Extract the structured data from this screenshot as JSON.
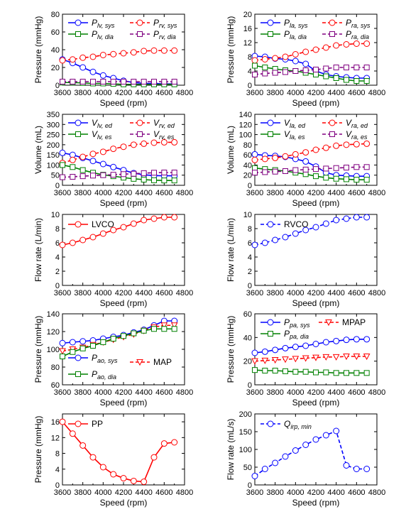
{
  "chart_data": [
    {
      "type": "line",
      "xlabel": "Speed (rpm)",
      "ylabel": "Pressure (mmHg)",
      "xlim": [
        3600,
        4800
      ],
      "ylim": [
        0,
        80
      ],
      "xticks": [
        3600,
        3800,
        4000,
        4200,
        4400,
        4600,
        4800
      ],
      "yticks": [
        0,
        20,
        40,
        60,
        80
      ],
      "legend": "top",
      "x": [
        3600,
        3700,
        3800,
        3900,
        4000,
        4100,
        4200,
        4300,
        4400,
        4500,
        4600,
        4700
      ],
      "series": [
        {
          "name": "P",
          "sub": "lv, sys",
          "color": "#0000ff",
          "marker": "circle",
          "dashed": false,
          "values": [
            29,
            25,
            20,
            15,
            11,
            8,
            5,
            3,
            2,
            2,
            1.5,
            1.5
          ]
        },
        {
          "name": "P",
          "sub": "rv, sys",
          "color": "#ff0000",
          "marker": "circle",
          "dashed": true,
          "values": [
            28,
            29,
            31,
            32,
            34,
            35,
            36,
            37,
            38.5,
            39,
            39,
            39
          ]
        },
        {
          "name": "P",
          "sub": "lv, dia",
          "color": "#008000",
          "marker": "square",
          "dashed": false,
          "values": [
            3,
            3,
            2.5,
            2,
            2,
            1.5,
            1,
            1,
            1,
            1,
            1,
            1
          ]
        },
        {
          "name": "P",
          "sub": "rv, dia",
          "color": "#800080",
          "marker": "square",
          "dashed": true,
          "values": [
            4,
            4,
            4,
            4,
            4,
            4,
            4,
            4,
            4,
            4,
            4,
            4
          ]
        }
      ]
    },
    {
      "type": "line",
      "xlabel": "Speed (rpm)",
      "ylabel": "Pressure (mmHg)",
      "xlim": [
        3600,
        4800
      ],
      "ylim": [
        0,
        20
      ],
      "xticks": [
        3600,
        3800,
        4000,
        4200,
        4400,
        4600,
        4800
      ],
      "yticks": [
        0,
        4,
        8,
        12,
        16,
        20
      ],
      "legend": "top",
      "x": [
        3600,
        3700,
        3800,
        3900,
        4000,
        4100,
        4200,
        4300,
        4400,
        4500,
        4600,
        4700
      ],
      "series": [
        {
          "name": "P",
          "sub": "la, sys",
          "color": "#0000ff",
          "marker": "circle",
          "dashed": false,
          "values": [
            8.2,
            8,
            7.5,
            7.3,
            6.8,
            6,
            4,
            3,
            2.5,
            2.2,
            2,
            2
          ]
        },
        {
          "name": "P",
          "sub": "ra, sys",
          "color": "#ff0000",
          "marker": "circle",
          "dashed": true,
          "values": [
            7,
            7.3,
            7.6,
            8,
            8.7,
            9.4,
            10,
            10.6,
            11.2,
            11.5,
            11.7,
            11.7
          ]
        },
        {
          "name": "P",
          "sub": "la, dia",
          "color": "#008000",
          "marker": "square",
          "dashed": false,
          "values": [
            5.5,
            5,
            4.6,
            4.2,
            4,
            3.5,
            3,
            2.5,
            2,
            1.5,
            1.2,
            1.2
          ]
        },
        {
          "name": "P",
          "sub": "ra, dia",
          "color": "#800080",
          "marker": "square",
          "dashed": true,
          "values": [
            3,
            3.3,
            3.5,
            3.7,
            4,
            4.2,
            4.4,
            4.7,
            5,
            5,
            5,
            5
          ]
        }
      ]
    },
    {
      "type": "line",
      "xlabel": "Speed (rpm)",
      "ylabel": "Volume (mL)",
      "xlim": [
        3600,
        4800
      ],
      "ylim": [
        0,
        350
      ],
      "xticks": [
        3600,
        3800,
        4000,
        4200,
        4400,
        4600,
        4800
      ],
      "yticks": [
        0,
        50,
        100,
        150,
        200,
        250,
        300,
        350
      ],
      "legend": "top",
      "x": [
        3600,
        3700,
        3800,
        3900,
        4000,
        4100,
        4200,
        4300,
        4400,
        4500,
        4600,
        4700
      ],
      "series": [
        {
          "name": "V",
          "sub": "lv, ed",
          "color": "#0000ff",
          "marker": "circle",
          "dashed": false,
          "values": [
            160,
            150,
            135,
            120,
            105,
            90,
            75,
            60,
            52,
            48,
            47,
            47
          ]
        },
        {
          "name": "V",
          "sub": "rv, ed",
          "color": "#ff0000",
          "marker": "circle",
          "dashed": true,
          "values": [
            110,
            125,
            140,
            155,
            165,
            180,
            190,
            200,
            205,
            210,
            212,
            212
          ]
        },
        {
          "name": "V",
          "sub": "lv, es",
          "color": "#008000",
          "marker": "square",
          "dashed": false,
          "values": [
            100,
            90,
            75,
            62,
            52,
            45,
            38,
            32,
            28,
            25,
            24,
            24
          ]
        },
        {
          "name": "V",
          "sub": "rv, es",
          "color": "#800080",
          "marker": "square",
          "dashed": true,
          "values": [
            40,
            42,
            45,
            48,
            50,
            52,
            55,
            57,
            60,
            62,
            63,
            63
          ]
        }
      ]
    },
    {
      "type": "line",
      "xlabel": "Speed (rpm)",
      "ylabel": "Volume (mL)",
      "xlim": [
        3600,
        4800
      ],
      "ylim": [
        0,
        140
      ],
      "xticks": [
        3600,
        3800,
        4000,
        4200,
        4400,
        4600,
        4800
      ],
      "yticks": [
        0,
        20,
        40,
        60,
        80,
        100,
        120,
        140
      ],
      "legend": "top",
      "x": [
        3600,
        3700,
        3800,
        3900,
        4000,
        4100,
        4200,
        4300,
        4400,
        4500,
        4600,
        4700
      ],
      "series": [
        {
          "name": "V",
          "sub": "la, ed",
          "color": "#0000ff",
          "marker": "circle",
          "dashed": false,
          "values": [
            61,
            59,
            58,
            56,
            52,
            47,
            37,
            25,
            20,
            19,
            18,
            18
          ]
        },
        {
          "name": "V",
          "sub": "ra, ed",
          "color": "#ff0000",
          "marker": "circle",
          "dashed": true,
          "values": [
            50,
            52,
            54,
            57,
            61,
            65,
            70,
            74,
            78,
            80,
            81,
            82
          ]
        },
        {
          "name": "V",
          "sub": "la, es",
          "color": "#008000",
          "marker": "square",
          "dashed": false,
          "values": [
            34,
            32,
            30,
            28,
            25,
            22,
            18,
            15,
            13,
            12,
            11,
            11
          ]
        },
        {
          "name": "V",
          "sub": "ra, es",
          "color": "#800080",
          "marker": "square",
          "dashed": true,
          "values": [
            25,
            26,
            27,
            28,
            30,
            31,
            32,
            33,
            34,
            35,
            36,
            36
          ]
        }
      ]
    },
    {
      "type": "line",
      "xlabel": "Speed (rpm)",
      "ylabel": "Flow rate (L/min)",
      "xlim": [
        3600,
        4800
      ],
      "ylim": [
        0,
        10
      ],
      "xticks": [
        3600,
        3800,
        4000,
        4200,
        4400,
        4600,
        4800
      ],
      "yticks": [
        0,
        2,
        4,
        6,
        8,
        10
      ],
      "legend": "top-left",
      "x": [
        3600,
        3700,
        3800,
        3900,
        4000,
        4100,
        4200,
        4300,
        4400,
        4500,
        4600,
        4700
      ],
      "series": [
        {
          "name": "LVCO",
          "sub": "",
          "color": "#ff0000",
          "marker": "circle",
          "dashed": false,
          "values": [
            5.7,
            6.0,
            6.4,
            6.8,
            7.3,
            7.8,
            8.2,
            8.7,
            9.2,
            9.4,
            9.6,
            9.6
          ]
        }
      ]
    },
    {
      "type": "line",
      "xlabel": "Speed (rpm)",
      "ylabel": "Flow rate (L/min)",
      "xlim": [
        3600,
        4800
      ],
      "ylim": [
        0,
        10
      ],
      "xticks": [
        3600,
        3800,
        4000,
        4200,
        4400,
        4600,
        4800
      ],
      "yticks": [
        0,
        2,
        4,
        6,
        8,
        10
      ],
      "legend": "top-left",
      "x": [
        3600,
        3700,
        3800,
        3900,
        4000,
        4100,
        4200,
        4300,
        4400,
        4500,
        4600,
        4700
      ],
      "series": [
        {
          "name": "RVCO",
          "sub": "",
          "color": "#0000ff",
          "marker": "circle",
          "dashed": true,
          "values": [
            5.7,
            6.0,
            6.4,
            6.8,
            7.3,
            7.8,
            8.2,
            8.7,
            9.2,
            9.4,
            9.6,
            9.6
          ]
        }
      ]
    },
    {
      "type": "line",
      "xlabel": "Speed (rpm)",
      "ylabel": "Pressure (mmHg)",
      "xlim": [
        3600,
        4800
      ],
      "ylim": [
        60,
        140
      ],
      "xticks": [
        3600,
        3800,
        4000,
        4200,
        4400,
        4600,
        4800
      ],
      "yticks": [
        60,
        80,
        100,
        120,
        140
      ],
      "legend": "bottom",
      "x": [
        3600,
        3700,
        3800,
        3900,
        4000,
        4100,
        4200,
        4300,
        4400,
        4500,
        4600,
        4700
      ],
      "series": [
        {
          "name": "P",
          "sub": "ao, sys",
          "color": "#0000ff",
          "marker": "circle",
          "dashed": false,
          "values": [
            107,
            108,
            109,
            110,
            112,
            114,
            116,
            119,
            122,
            127,
            132,
            132
          ]
        },
        {
          "name": "MAP",
          "sub": "",
          "color": "#ff0000",
          "marker": "triangle",
          "dashed": true,
          "values": [
            98,
            100,
            102,
            105,
            108,
            111,
            114,
            117,
            121,
            125,
            127,
            127
          ]
        },
        {
          "name": "P",
          "sub": "ao, dia",
          "color": "#008000",
          "marker": "square",
          "dashed": false,
          "values": [
            92,
            97,
            101,
            104,
            108,
            112,
            115,
            118,
            121,
            123,
            123,
            123
          ]
        }
      ]
    },
    {
      "type": "line",
      "xlabel": "Speed (rpm)",
      "ylabel": "Pressure (mmHg)",
      "xlim": [
        3600,
        4800
      ],
      "ylim": [
        0,
        60
      ],
      "xticks": [
        3600,
        3800,
        4000,
        4200,
        4400,
        4600,
        4800
      ],
      "yticks": [
        0,
        20,
        40,
        60
      ],
      "legend": "top",
      "x": [
        3600,
        3700,
        3800,
        3900,
        4000,
        4100,
        4200,
        4300,
        4400,
        4500,
        4600,
        4700
      ],
      "series": [
        {
          "name": "P",
          "sub": "pa, sys",
          "color": "#0000ff",
          "marker": "circle",
          "dashed": false,
          "values": [
            27,
            28,
            29.5,
            31,
            32,
            33,
            34.5,
            36,
            37,
            38,
            38.5,
            38.5
          ]
        },
        {
          "name": "MPAP",
          "sub": "",
          "color": "#ff0000",
          "marker": "triangle",
          "dashed": true,
          "values": [
            20,
            20.5,
            21,
            21.5,
            22,
            22.5,
            23,
            23.5,
            23.5,
            24,
            24,
            24
          ]
        },
        {
          "name": "P",
          "sub": "pa, dia",
          "color": "#008000",
          "marker": "square",
          "dashed": false,
          "values": [
            12.5,
            12,
            12,
            11.5,
            11,
            11,
            10.5,
            10.5,
            10,
            10,
            10,
            10
          ]
        }
      ]
    },
    {
      "type": "line",
      "xlabel": "Speed (rpm)",
      "ylabel": "Pressure (mmHg)",
      "xlim": [
        3600,
        4800
      ],
      "ylim": [
        0,
        18
      ],
      "xticks": [
        3600,
        3800,
        4000,
        4200,
        4400,
        4600,
        4800
      ],
      "yticks": [
        0,
        4,
        8,
        12,
        16
      ],
      "legend": "top-left",
      "x": [
        3600,
        3700,
        3800,
        3900,
        4000,
        4100,
        4200,
        4300,
        4400,
        4500,
        4600,
        4700
      ],
      "series": [
        {
          "name": "PP",
          "sub": "",
          "color": "#ff0000",
          "marker": "circle",
          "dashed": false,
          "values": [
            16,
            13,
            10,
            7,
            4.5,
            2.7,
            1.7,
            1.0,
            0.8,
            7.0,
            10.5,
            10.8
          ]
        }
      ]
    },
    {
      "type": "line",
      "xlabel": "Speed (rpm)",
      "ylabel": "Flow rate (mL/s)",
      "xlim": [
        3600,
        4800
      ],
      "ylim": [
        0,
        200
      ],
      "xticks": [
        3600,
        3800,
        4000,
        4200,
        4400,
        4600,
        4800
      ],
      "yticks": [
        0,
        50,
        100,
        150,
        200
      ],
      "legend": "top-left",
      "x": [
        3600,
        3700,
        3800,
        3900,
        4000,
        4100,
        4200,
        4300,
        4400,
        4500,
        4600,
        4700
      ],
      "series": [
        {
          "name": "Q",
          "sub": "irp, min",
          "color": "#0000ff",
          "marker": "circle",
          "dashed": true,
          "values": [
            25,
            45,
            62,
            80,
            97,
            113,
            128,
            140,
            152,
            55,
            45,
            45
          ]
        }
      ]
    }
  ]
}
